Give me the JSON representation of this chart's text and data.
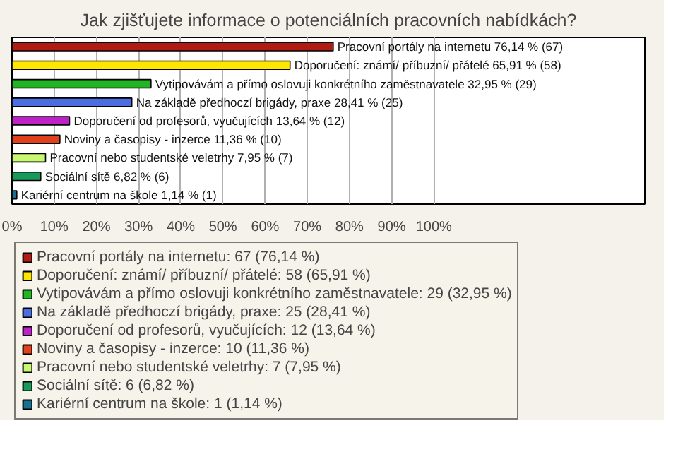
{
  "chart_data": {
    "type": "bar",
    "orientation": "horizontal",
    "title": "Jak zjišťujete informace o potenciálních pracovních nabídkách?",
    "categories": [
      "Pracovní portály na internetu",
      "Doporučení: známí/ příbuzní/ přátelé",
      "Vytipovávám a přímo oslovuji konkrétního zaměstnavatele",
      "Na základě předhoczí brigády, praxe",
      "Doporučení od profesorů, vyučujících",
      "Noviny a časopisy - inzerce",
      "Pracovní nebo studentské veletrhy",
      "Sociální sítě",
      "Kariérní centrum na škole"
    ],
    "series": [
      {
        "name": "Pracovní portály na internetu: 67 (76,14 %)",
        "color": "#b01c14",
        "values": [
          76.14,
          null,
          null,
          null,
          null,
          null,
          null,
          null,
          null
        ],
        "value_labels": [
          "76,14 % (67)",
          null,
          null,
          null,
          null,
          null,
          null,
          null,
          null
        ]
      },
      {
        "name": "Doporučení: známí/ příbuzní/ přátelé: 58 (65,91 %)",
        "color": "#ffe600",
        "values": [
          null,
          65.91,
          null,
          null,
          null,
          null,
          null,
          null,
          null
        ],
        "value_labels": [
          null,
          "65,91 % (58)",
          null,
          null,
          null,
          null,
          null,
          null,
          null
        ]
      },
      {
        "name": "Vytipovávám a přímo oslovuji konkrétního zaměstnavatele: 29 (32,95 %)",
        "color": "#22b422",
        "values": [
          null,
          null,
          32.95,
          null,
          null,
          null,
          null,
          null,
          null
        ],
        "value_labels": [
          null,
          null,
          "32,95 % (29)",
          null,
          null,
          null,
          null,
          null,
          null
        ]
      },
      {
        "name": "Na základě předhoczí brigády, praxe: 25 (28,41 %)",
        "color": "#4a6ee0",
        "values": [
          null,
          null,
          null,
          28.41,
          null,
          null,
          null,
          null,
          null
        ],
        "value_labels": [
          null,
          null,
          null,
          "28,41 % (25)",
          null,
          null,
          null,
          null,
          null
        ]
      },
      {
        "name": "Doporučení od profesorů, vyučujících: 12 (13,64 %)",
        "color": "#c020c8",
        "values": [
          null,
          null,
          null,
          null,
          13.64,
          null,
          null,
          null,
          null
        ],
        "value_labels": [
          null,
          null,
          null,
          null,
          "13,64 % (12)",
          null,
          null,
          null,
          null
        ]
      },
      {
        "name": "Noviny a časopisy - inzerce: 10 (11,36 %)",
        "color": "#e0401a",
        "values": [
          null,
          null,
          null,
          null,
          null,
          11.36,
          null,
          null,
          null
        ],
        "value_labels": [
          null,
          null,
          null,
          null,
          null,
          "11,36 % (10)",
          null,
          null,
          null
        ]
      },
      {
        "name": "Pracovní nebo studentské veletrhy: 7 (7,95 %)",
        "color": "#c8f870",
        "values": [
          null,
          null,
          null,
          null,
          null,
          null,
          7.95,
          null,
          null
        ],
        "value_labels": [
          null,
          null,
          null,
          null,
          null,
          null,
          "7,95 % (7)",
          null,
          null
        ]
      },
      {
        "name": "Sociální sítě: 6 (6,82 %)",
        "color": "#1a9a5a",
        "values": [
          null,
          null,
          null,
          null,
          null,
          null,
          null,
          6.82,
          null
        ],
        "value_labels": [
          null,
          null,
          null,
          null,
          null,
          null,
          null,
          "6,82 % (6)",
          null
        ]
      },
      {
        "name": "Kariérní centrum na škole: 1 (1,14 %)",
        "color": "#1a7090",
        "values": [
          null,
          null,
          null,
          null,
          null,
          null,
          null,
          null,
          1.14
        ],
        "value_labels": [
          null,
          null,
          null,
          null,
          null,
          null,
          null,
          null,
          "1,14 % (1)"
        ]
      }
    ],
    "xlim": [
      0,
      150
    ],
    "xticks": [
      {
        "value": 0,
        "label": "0%"
      },
      {
        "value": 10,
        "label": "10%"
      },
      {
        "value": 20,
        "label": "20%"
      },
      {
        "value": 30,
        "label": "30%"
      },
      {
        "value": 40,
        "label": "40%"
      },
      {
        "value": 50,
        "label": "50%"
      },
      {
        "value": 60,
        "label": "60%"
      },
      {
        "value": 70,
        "label": "70%"
      },
      {
        "value": 80,
        "label": "80%"
      },
      {
        "value": 90,
        "label": "90%"
      },
      {
        "value": 100,
        "label": "100%"
      }
    ],
    "grid": "x",
    "legend": "bottom",
    "tick_labels": "x"
  }
}
